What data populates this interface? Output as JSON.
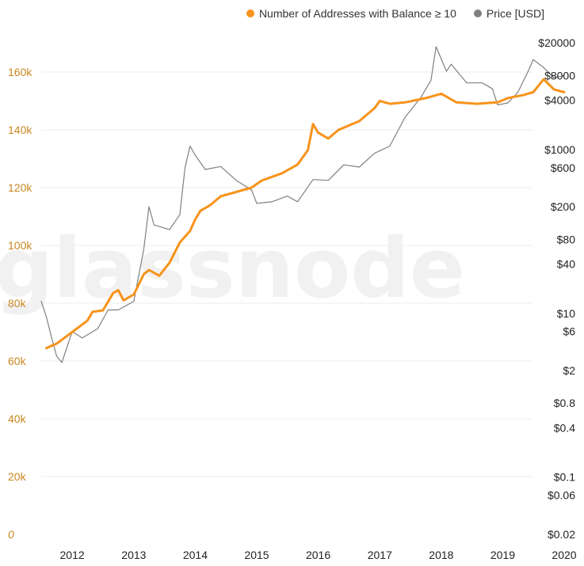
{
  "legend": {
    "series_a": "Number of Addresses with Balance ≥ 10",
    "series_b": "Price [USD]",
    "color_a": "#f7931a",
    "color_b": "#808080"
  },
  "watermark": "glassnode",
  "chart_data": {
    "type": "line",
    "grid": true,
    "legend_position": "top-right",
    "y_left": {
      "range": [
        0,
        180000
      ],
      "ticks": [
        0,
        20000,
        40000,
        60000,
        80000,
        100000,
        120000,
        140000,
        160000
      ],
      "labels": [
        "0",
        "20k",
        "40k",
        "60k",
        "80k",
        "100k",
        "120k",
        "140k",
        "160k"
      ],
      "color": "#c8871f"
    },
    "y_right": {
      "scale": "log",
      "range": [
        0.02,
        30000
      ],
      "ticks": [
        0.02,
        0.06,
        0.1,
        0.4,
        0.8,
        2,
        6,
        10,
        40,
        80,
        200,
        600,
        1000,
        4000,
        8000,
        20000
      ],
      "labels": [
        "$0.02",
        "$0.06",
        "$0.1",
        "$0.4",
        "$0.8",
        "$2",
        "$6",
        "$10",
        "$40",
        "$80",
        "$200",
        "$600",
        "$1000",
        "$4000",
        "$8000",
        "$20000"
      ]
    },
    "x": {
      "range": [
        "2011-07-01",
        "2020-01-01"
      ],
      "ticks": [
        "2012-01-01",
        "2013-01-01",
        "2014-01-01",
        "2015-01-01",
        "2016-01-01",
        "2017-01-01",
        "2018-01-01",
        "2019-01-01",
        "2020-01-01"
      ],
      "labels": [
        "2012",
        "2013",
        "2014",
        "2015",
        "2016",
        "2017",
        "2018",
        "2019",
        "2020"
      ]
    },
    "series": [
      {
        "name": "Number of Addresses with Balance ≥ 10",
        "axis": "left",
        "color": "#f7931a",
        "points": [
          [
            "2011-08-01",
            64500
          ],
          [
            "2011-10-01",
            66000
          ],
          [
            "2012-01-01",
            70000
          ],
          [
            "2012-04-01",
            74000
          ],
          [
            "2012-05-01",
            77000
          ],
          [
            "2012-07-01",
            77500
          ],
          [
            "2012-09-01",
            83500
          ],
          [
            "2012-10-01",
            84500
          ],
          [
            "2012-11-01",
            81000
          ],
          [
            "2013-01-01",
            83000
          ],
          [
            "2013-03-01",
            90000
          ],
          [
            "2013-04-01",
            91500
          ],
          [
            "2013-06-01",
            89500
          ],
          [
            "2013-08-01",
            94000
          ],
          [
            "2013-10-01",
            101000
          ],
          [
            "2013-12-01",
            105000
          ],
          [
            "2014-01-01",
            109000
          ],
          [
            "2014-02-01",
            112000
          ],
          [
            "2014-04-01",
            114000
          ],
          [
            "2014-06-01",
            117000
          ],
          [
            "2014-09-01",
            118500
          ],
          [
            "2014-12-01",
            120000
          ],
          [
            "2015-02-01",
            122500
          ],
          [
            "2015-06-01",
            125000
          ],
          [
            "2015-09-01",
            128000
          ],
          [
            "2015-11-01",
            133000
          ],
          [
            "2015-12-01",
            142000
          ],
          [
            "2016-01-01",
            139000
          ],
          [
            "2016-03-01",
            137000
          ],
          [
            "2016-05-01",
            140000
          ],
          [
            "2016-09-01",
            143000
          ],
          [
            "2016-12-01",
            147500
          ],
          [
            "2017-01-01",
            150000
          ],
          [
            "2017-03-01",
            149000
          ],
          [
            "2017-06-01",
            149500
          ],
          [
            "2017-10-01",
            151000
          ],
          [
            "2018-01-01",
            152500
          ],
          [
            "2018-04-01",
            149500
          ],
          [
            "2018-08-01",
            149000
          ],
          [
            "2018-12-01",
            149500
          ],
          [
            "2019-02-01",
            151000
          ],
          [
            "2019-05-01",
            152000
          ],
          [
            "2019-07-01",
            153000
          ],
          [
            "2019-09-01",
            157500
          ],
          [
            "2019-11-01",
            154000
          ],
          [
            "2020-01-01",
            153000
          ]
        ]
      },
      {
        "name": "Price [USD]",
        "axis": "right",
        "color": "#808080",
        "points": [
          [
            "2011-07-01",
            14
          ],
          [
            "2011-08-01",
            9
          ],
          [
            "2011-09-01",
            5
          ],
          [
            "2011-10-01",
            3
          ],
          [
            "2011-11-01",
            2.5
          ],
          [
            "2012-01-01",
            6
          ],
          [
            "2012-03-01",
            5
          ],
          [
            "2012-06-01",
            6.5
          ],
          [
            "2012-08-01",
            11
          ],
          [
            "2012-10-01",
            11
          ],
          [
            "2013-01-01",
            14
          ],
          [
            "2013-03-01",
            60
          ],
          [
            "2013-04-01",
            200
          ],
          [
            "2013-05-01",
            120
          ],
          [
            "2013-08-01",
            105
          ],
          [
            "2013-10-01",
            160
          ],
          [
            "2013-11-01",
            600
          ],
          [
            "2013-12-01",
            1100
          ],
          [
            "2014-01-01",
            850
          ],
          [
            "2014-03-01",
            570
          ],
          [
            "2014-06-01",
            620
          ],
          [
            "2014-09-01",
            420
          ],
          [
            "2014-12-01",
            320
          ],
          [
            "2015-01-01",
            220
          ],
          [
            "2015-04-01",
            230
          ],
          [
            "2015-07-01",
            270
          ],
          [
            "2015-09-01",
            230
          ],
          [
            "2015-12-01",
            430
          ],
          [
            "2016-03-01",
            420
          ],
          [
            "2016-06-01",
            650
          ],
          [
            "2016-09-01",
            610
          ],
          [
            "2016-12-01",
            900
          ],
          [
            "2017-03-01",
            1100
          ],
          [
            "2017-06-01",
            2500
          ],
          [
            "2017-09-01",
            4300
          ],
          [
            "2017-11-01",
            7000
          ],
          [
            "2017-12-01",
            18000
          ],
          [
            "2018-02-01",
            9000
          ],
          [
            "2018-03-01",
            11000
          ],
          [
            "2018-06-01",
            6500
          ],
          [
            "2018-09-01",
            6500
          ],
          [
            "2018-11-01",
            5500
          ],
          [
            "2018-12-01",
            3500
          ],
          [
            "2019-02-01",
            3700
          ],
          [
            "2019-04-01",
            5000
          ],
          [
            "2019-06-01",
            9000
          ],
          [
            "2019-07-01",
            12500
          ],
          [
            "2019-09-01",
            10000
          ],
          [
            "2019-11-01",
            7500
          ],
          [
            "2020-01-01",
            8000
          ]
        ]
      }
    ]
  }
}
